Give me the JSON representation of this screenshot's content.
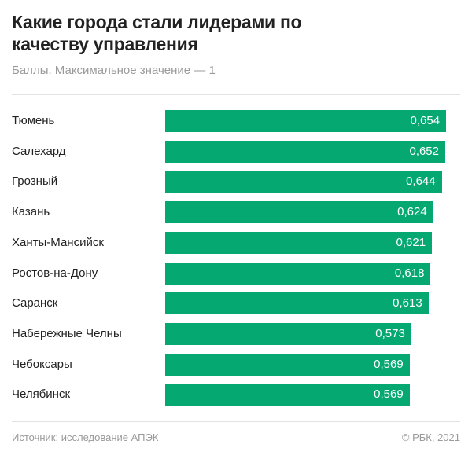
{
  "header": {
    "title": "Какие города стали лидерами по качеству управления",
    "subtitle": "Баллы. Максимальное значение — 1"
  },
  "footer": {
    "source": "Источник: исследование АПЭК",
    "copyright": "© РБК, 2021"
  },
  "colors": {
    "bar": "#05a870"
  },
  "chart_data": {
    "type": "bar",
    "orientation": "horizontal",
    "title": "Какие города стали лидерами по качеству управления",
    "subtitle": "Баллы. Максимальное значение — 1",
    "categories": [
      "Тюмень",
      "Салехард",
      "Грозный",
      "Казань",
      "Ханты-Мансийск",
      "Ростов-на-Дону",
      "Саранск",
      "Набережные Челны",
      "Чебоксары",
      "Челябинск"
    ],
    "values": [
      0.654,
      0.652,
      0.644,
      0.624,
      0.621,
      0.618,
      0.613,
      0.573,
      0.569,
      0.569
    ],
    "value_labels": [
      "0,654",
      "0,652",
      "0,644",
      "0,624",
      "0,621",
      "0,618",
      "0,613",
      "0,573",
      "0,569",
      "0,569"
    ],
    "xlim": [
      0,
      1
    ],
    "grid": false
  }
}
